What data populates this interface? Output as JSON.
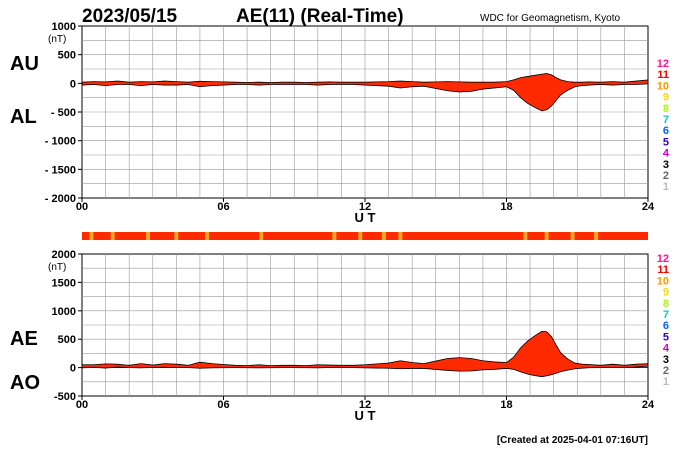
{
  "header": {
    "date": "2023/05/15",
    "title": "AE(11) (Real-Time)",
    "source": "WDC for Geomagnetism, Kyoto"
  },
  "footer": {
    "created": "[Created at 2025-04-01 07:16UT]"
  },
  "scale_legend": {
    "labels": [
      "12",
      "11",
      "10",
      "9",
      "8",
      "7",
      "6",
      "5",
      "4",
      "3",
      "2",
      "1"
    ],
    "colors": [
      "#ff1493",
      "#ff0000",
      "#ff9900",
      "#ffd700",
      "#aaff00",
      "#00cccc",
      "#0066ff",
      "#3300cc",
      "#cc00cc",
      "#000000",
      "#666666",
      "#bbbbbb"
    ]
  },
  "colors": {
    "fill": "#ff2a00",
    "station_highlight": "#f5a623",
    "grid": "#999999"
  },
  "chart_data": [
    {
      "type": "area",
      "panel": "AU-AL",
      "series_labels": [
        "AU",
        "AL"
      ],
      "xlabel": "U T",
      "x_ticks": [
        "00",
        "06",
        "12",
        "18",
        "24"
      ],
      "x_tick_values": [
        0,
        6,
        12,
        18,
        24
      ],
      "ylim": [
        -2000,
        1000
      ],
      "y_ticks": [
        "1000",
        "500",
        "0",
        "- 500",
        "- 1000",
        "- 1500",
        "- 2000"
      ],
      "y_tick_values": [
        1000,
        500,
        0,
        -500,
        -1000,
        -1500,
        -2000
      ],
      "y_unit": "(nT)",
      "grid": true,
      "x": [
        0,
        0.5,
        1,
        1.5,
        2,
        2.5,
        3,
        3.5,
        4,
        4.5,
        5,
        5.5,
        6,
        6.5,
        7,
        7.5,
        8,
        8.5,
        9,
        9.5,
        10,
        10.5,
        11,
        11.5,
        12,
        12.5,
        13,
        13.5,
        14,
        14.5,
        15,
        15.5,
        16,
        16.5,
        17,
        17.5,
        18,
        18.3,
        18.6,
        18.9,
        19.2,
        19.5,
        19.7,
        19.9,
        20.1,
        20.3,
        20.6,
        20.9,
        21.2,
        21.5,
        22,
        22.5,
        23,
        23.5,
        24
      ],
      "au": [
        20,
        30,
        25,
        40,
        20,
        30,
        25,
        40,
        30,
        20,
        35,
        30,
        25,
        20,
        15,
        20,
        15,
        20,
        20,
        15,
        20,
        25,
        20,
        20,
        20,
        25,
        30,
        40,
        30,
        20,
        25,
        30,
        25,
        20,
        20,
        20,
        30,
        60,
        100,
        120,
        140,
        160,
        170,
        150,
        100,
        60,
        30,
        20,
        20,
        25,
        20,
        30,
        20,
        40,
        60
      ],
      "al": [
        -30,
        -20,
        -40,
        -20,
        -20,
        -40,
        -20,
        -30,
        -30,
        -20,
        -60,
        -40,
        -30,
        -20,
        -20,
        -30,
        -20,
        -20,
        -20,
        -20,
        -30,
        -20,
        -20,
        -20,
        -30,
        -40,
        -50,
        -80,
        -60,
        -50,
        -90,
        -130,
        -150,
        -140,
        -100,
        -80,
        -60,
        -120,
        -250,
        -350,
        -420,
        -480,
        -460,
        -400,
        -300,
        -200,
        -120,
        -60,
        -40,
        -30,
        -20,
        -30,
        -20,
        -20,
        -10
      ],
      "highlights": [
        {
          "x": 18.0,
          "from": -60,
          "to": 30
        },
        {
          "x": 19.4,
          "from": -300,
          "to": 140
        },
        {
          "x": 19.7,
          "from": -460,
          "to": 170
        },
        {
          "x": 20.3,
          "from": -200,
          "to": 60
        },
        {
          "x": 13.4,
          "from": -50,
          "to": 35
        },
        {
          "x": 14.6,
          "from": -60,
          "to": 25
        },
        {
          "x": 16.6,
          "from": -130,
          "to": 20
        },
        {
          "x": 5.4,
          "from": -40,
          "to": 30
        },
        {
          "x": 10.8,
          "from": -20,
          "to": 25
        },
        {
          "x": 22.5,
          "from": -25,
          "to": 30
        }
      ]
    },
    {
      "type": "area",
      "panel": "AE-AO",
      "series_labels": [
        "AE",
        "AO"
      ],
      "xlabel": "U T",
      "x_ticks": [
        "00",
        "06",
        "12",
        "18",
        "24"
      ],
      "x_tick_values": [
        0,
        6,
        12,
        18,
        24
      ],
      "ylim": [
        -500,
        2000
      ],
      "y_ticks": [
        "2000",
        "1500",
        "1000",
        "500",
        "0",
        "-500"
      ],
      "y_tick_values": [
        2000,
        1500,
        1000,
        500,
        0,
        -500
      ],
      "y_unit": "(nT)",
      "grid": true,
      "x": [
        0,
        0.5,
        1,
        1.5,
        2,
        2.5,
        3,
        3.5,
        4,
        4.5,
        5,
        5.5,
        6,
        6.5,
        7,
        7.5,
        8,
        8.5,
        9,
        9.5,
        10,
        10.5,
        11,
        11.5,
        12,
        12.5,
        13,
        13.5,
        14,
        14.5,
        15,
        15.5,
        16,
        16.5,
        17,
        17.5,
        18,
        18.3,
        18.6,
        18.9,
        19.2,
        19.5,
        19.7,
        19.9,
        20.1,
        20.3,
        20.6,
        20.9,
        21.2,
        21.5,
        22,
        22.5,
        23,
        23.5,
        24
      ],
      "ae": [
        50,
        50,
        65,
        60,
        40,
        70,
        45,
        70,
        60,
        40,
        95,
        70,
        55,
        40,
        35,
        50,
        35,
        40,
        40,
        35,
        50,
        45,
        40,
        40,
        50,
        65,
        80,
        120,
        90,
        70,
        115,
        160,
        175,
        160,
        120,
        100,
        90,
        180,
        350,
        470,
        560,
        640,
        630,
        550,
        400,
        260,
        150,
        80,
        60,
        55,
        40,
        60,
        40,
        60,
        70
      ],
      "ao": [
        -5,
        5,
        -8,
        10,
        0,
        -5,
        2,
        5,
        0,
        0,
        -12,
        -5,
        -2,
        0,
        -2,
        -5,
        -2,
        0,
        0,
        -2,
        -5,
        2,
        0,
        0,
        -5,
        -8,
        -10,
        -20,
        -15,
        -15,
        -32,
        -50,
        -62,
        -60,
        -40,
        -30,
        -15,
        -30,
        -75,
        -115,
        -140,
        -160,
        -145,
        -125,
        -100,
        -70,
        -45,
        -20,
        -10,
        -2,
        0,
        0,
        0,
        10,
        25
      ],
      "highlights": [
        {
          "x": 18.0,
          "from": -15,
          "to": 90
        },
        {
          "x": 19.4,
          "from": -150,
          "to": 600
        },
        {
          "x": 19.7,
          "from": -145,
          "to": 630
        },
        {
          "x": 20.3,
          "from": -70,
          "to": 260
        },
        {
          "x": 13.4,
          "from": -20,
          "to": 110
        },
        {
          "x": 14.6,
          "from": -15,
          "to": 80
        },
        {
          "x": 16.6,
          "from": -60,
          "to": 160
        },
        {
          "x": 5.4,
          "from": -8,
          "to": 85
        },
        {
          "x": 10.8,
          "from": 0,
          "to": 45
        },
        {
          "x": 22.5,
          "from": 0,
          "to": 55
        }
      ]
    }
  ],
  "station_strip": {
    "segments": [
      0.4,
      1.3,
      2.8,
      4.0,
      5.3,
      7.6,
      10.7,
      11.8,
      12.8,
      13.5,
      18.8,
      19.7,
      20.8,
      21.8
    ]
  }
}
